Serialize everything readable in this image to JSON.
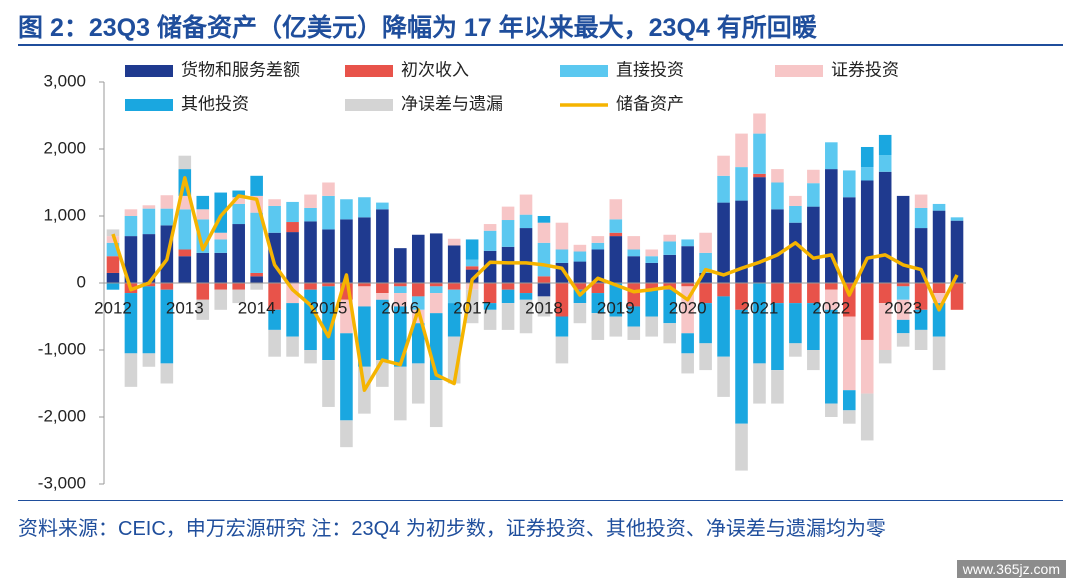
{
  "chart_data": {
    "type": "bar",
    "title": "图 2：23Q3 储备资产（亿美元）降幅为 17 年以来最大，23Q4 有所回暖",
    "note": "资料来源：CEIC，申万宏源研究 注：23Q4 为初步数，证券投资、其他投资、净误差与遗漏均为零",
    "watermark": "www.365jz.com",
    "categories": [
      "2012",
      null,
      null,
      null,
      "2013",
      null,
      null,
      null,
      "2014",
      null,
      null,
      null,
      "2015",
      null,
      null,
      null,
      "2016",
      null,
      null,
      null,
      "2017",
      null,
      null,
      null,
      "2018",
      null,
      null,
      null,
      "2019",
      null,
      null,
      null,
      "2020",
      null,
      null,
      null,
      "2021",
      null,
      null,
      null,
      "2022",
      null,
      null,
      null,
      "2023",
      null,
      null,
      null
    ],
    "ylim": [
      -3000,
      3000
    ],
    "yticks": [
      {
        "value": -3000,
        "label": "-3,000"
      },
      {
        "value": -2000,
        "label": "-2,000"
      },
      {
        "value": -1000,
        "label": "-1,000"
      },
      0,
      {
        "value": 1000,
        "label": "1,000"
      },
      {
        "value": 2000,
        "label": "2,000"
      },
      {
        "value": 3000,
        "label": "3,000"
      }
    ],
    "legend": "top",
    "series": [
      {
        "name": "货物和服务差额",
        "color": "#1f3a8f",
        "values": [
          150,
          700,
          730,
          860,
          400,
          450,
          450,
          880,
          100,
          750,
          760,
          920,
          800,
          950,
          980,
          1100,
          520,
          720,
          740,
          560,
          200,
          480,
          540,
          820,
          -200,
          300,
          320,
          500,
          700,
          400,
          300,
          420,
          550,
          150,
          1200,
          1230,
          1580,
          1100,
          900,
          1140,
          1700,
          1280,
          1530,
          1660,
          1300,
          820,
          1080,
          930
        ]
      },
      {
        "name": "初次收入",
        "color": "#e8534a",
        "values": [
          250,
          -150,
          -50,
          -100,
          100,
          -250,
          -100,
          -100,
          50,
          -400,
          150,
          -100,
          -50,
          -250,
          -50,
          -150,
          -50,
          -200,
          -50,
          -100,
          50,
          -300,
          -100,
          -150,
          100,
          -500,
          -100,
          -150,
          50,
          -350,
          -100,
          -100,
          -50,
          -300,
          -200,
          -400,
          50,
          -300,
          -300,
          -300,
          -100,
          -500,
          -850,
          -300,
          -50,
          -400,
          -150,
          -400
        ]
      },
      {
        "name": "直接投资",
        "color": "#5bc8f0",
        "values": [
          200,
          300,
          380,
          250,
          600,
          500,
          200,
          300,
          900,
          400,
          300,
          200,
          500,
          300,
          300,
          100,
          -100,
          -200,
          -100,
          -200,
          100,
          300,
          400,
          200,
          500,
          200,
          150,
          100,
          200,
          100,
          100,
          200,
          100,
          300,
          400,
          500,
          600,
          400,
          250,
          350,
          400,
          400,
          200,
          250,
          -200,
          300,
          100,
          50
        ]
      },
      {
        "name": "证券投资",
        "color": "#f7c6c7",
        "values": [
          100,
          100,
          50,
          200,
          200,
          150,
          100,
          100,
          250,
          100,
          -300,
          200,
          200,
          -500,
          -300,
          -100,
          -200,
          -200,
          -300,
          100,
          -100,
          100,
          200,
          300,
          300,
          400,
          100,
          100,
          300,
          200,
          100,
          100,
          -700,
          300,
          300,
          500,
          300,
          200,
          150,
          200,
          -300,
          -1100,
          -800,
          -700,
          -300,
          200,
          -150,
          0
        ]
      },
      {
        "name": "其他投资",
        "color": "#1aa7e0",
        "values": [
          -100,
          -900,
          -1000,
          -1100,
          400,
          200,
          600,
          100,
          300,
          -300,
          -500,
          -900,
          -1100,
          -1300,
          -900,
          -900,
          -900,
          -600,
          -1000,
          -500,
          300,
          -100,
          -200,
          -100,
          100,
          -300,
          -200,
          -300,
          -500,
          -300,
          -400,
          -500,
          -300,
          -600,
          -900,
          -1700,
          -1200,
          -1000,
          -600,
          -700,
          -1400,
          -300,
          300,
          300,
          -200,
          -300,
          -500,
          0
        ]
      },
      {
        "name": "净误差与遗漏",
        "color": "#d4d4d4",
        "values": [
          100,
          -500,
          -200,
          -300,
          200,
          -300,
          -300,
          -200,
          -100,
          -400,
          -300,
          -200,
          -700,
          -400,
          -700,
          -400,
          -800,
          -600,
          -700,
          -700,
          -500,
          -300,
          -400,
          -500,
          -300,
          -400,
          -300,
          -400,
          -300,
          -200,
          -300,
          -300,
          -300,
          -400,
          -600,
          -700,
          -600,
          -500,
          -200,
          -300,
          -200,
          -200,
          -700,
          -200,
          -200,
          -300,
          -500,
          0
        ]
      },
      {
        "name": "储备资产",
        "color": "#f5b400",
        "type": "line",
        "values": [
          730,
          -100,
          0,
          350,
          1570,
          500,
          1000,
          1300,
          1250,
          270,
          -100,
          -330,
          -800,
          120,
          -1600,
          -1150,
          -1220,
          -400,
          -1370,
          -1500,
          50,
          310,
          300,
          300,
          270,
          220,
          -180,
          70,
          -30,
          -130,
          -100,
          -60,
          -250,
          200,
          120,
          220,
          310,
          420,
          600,
          370,
          420,
          -180,
          370,
          420,
          270,
          200,
          -400,
          120
        ]
      }
    ]
  }
}
